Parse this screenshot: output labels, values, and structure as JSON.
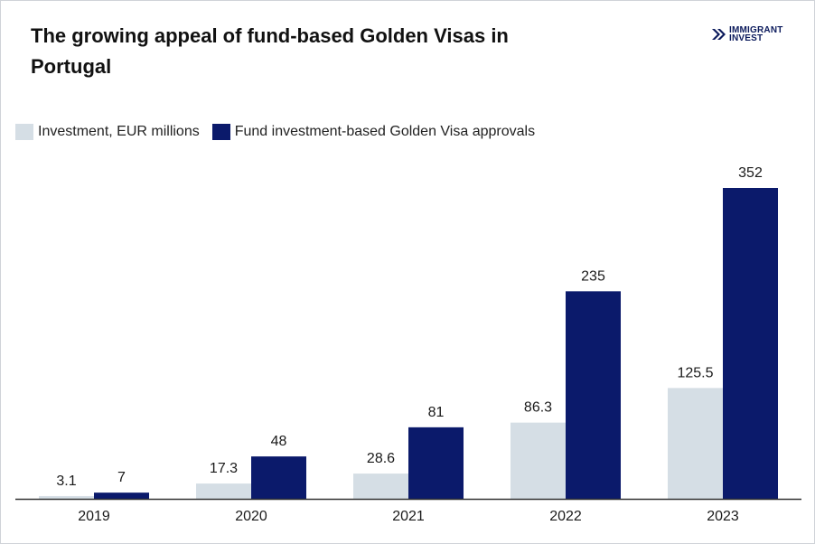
{
  "brand": {
    "line1": "IMMIGRANT",
    "line2": "INVEST",
    "logo_icon": "double-chevron-icon",
    "color": "#0b1a5c"
  },
  "colors": {
    "investment": "#d5dee5",
    "approvals": "#0b1a6b",
    "axis": "#333333"
  },
  "chart_data": {
    "type": "bar",
    "title": "The growing appeal of fund-based Golden Visas in Portugal",
    "categories": [
      "2019",
      "2020",
      "2021",
      "2022",
      "2023"
    ],
    "series": [
      {
        "name": "Investment, EUR millions",
        "values": [
          3.1,
          17.3,
          28.6,
          86.3,
          125.5
        ],
        "labels": [
          "3.1",
          "17.3",
          "28.6",
          "86.3",
          "125.5"
        ]
      },
      {
        "name": "Fund investment-based Golden Visa approvals",
        "values": [
          7,
          48,
          81,
          235,
          352
        ],
        "labels": [
          "7",
          "48",
          "81",
          "235",
          "352"
        ]
      }
    ],
    "xlabel": "",
    "ylabel": "",
    "ylim": [
      0,
      352
    ],
    "grid": false,
    "legend": "top-left"
  }
}
